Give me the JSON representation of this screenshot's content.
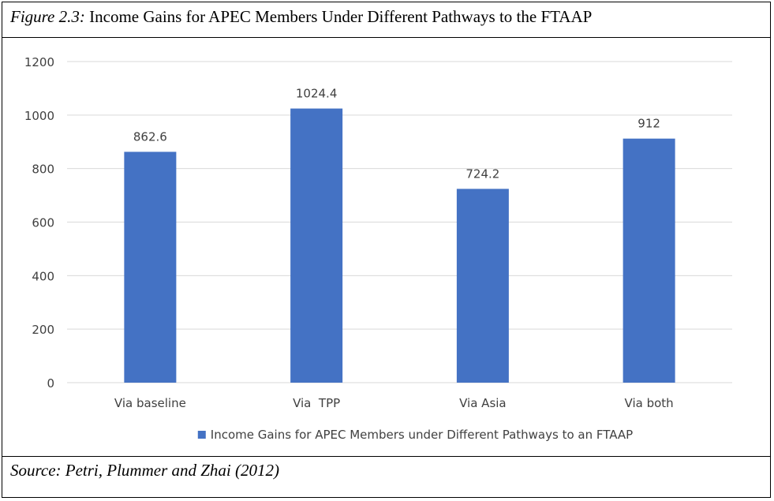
{
  "caption": {
    "figure_label": "Figure 2.3:",
    "title": "Income Gains for APEC Members Under Different Pathways to the FTAAP"
  },
  "source": "Source: Petri, Plummer and Zhai (2012)",
  "chart_data": {
    "type": "bar",
    "categories": [
      "Via baseline",
      "Via  TPP",
      "Via Asia",
      "Via both"
    ],
    "series": [
      {
        "name": "Income Gains for APEC Members under Different Pathways to an FTAAP",
        "values": [
          862.6,
          1024.4,
          724.2,
          912
        ],
        "labels": [
          "862.6",
          "1024.4",
          "724.2",
          "912"
        ]
      }
    ],
    "ylim": [
      0,
      1200
    ],
    "yticks": [
      0,
      200,
      400,
      600,
      800,
      1000,
      1200
    ],
    "grid": true,
    "legend_position": "bottom",
    "colors": {
      "bar": "#4472C4",
      "grid": "#d9d9d9",
      "text": "#404040"
    }
  }
}
